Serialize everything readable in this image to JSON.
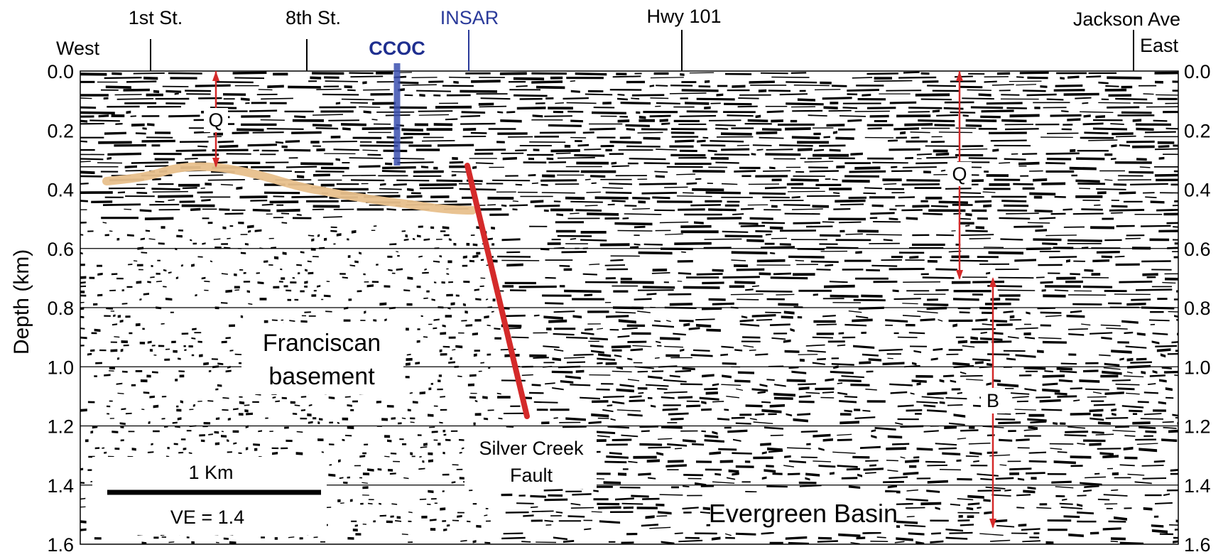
{
  "figure": {
    "axis": {
      "ylabel": "Depth (km)",
      "ylim": [
        0.0,
        1.6
      ],
      "ticks": [
        "0.0",
        "0.2",
        "0.4",
        "0.6",
        "0.8",
        "1.0",
        "1.2",
        "1.4",
        "1.6"
      ],
      "gridlines_at": [
        0.6,
        0.8,
        1.0,
        1.2,
        1.4
      ]
    },
    "street_labels": [
      {
        "id": "1st",
        "label": "1st St."
      },
      {
        "id": "8th",
        "label": "8th St."
      },
      {
        "id": "insar",
        "label": "INSAR"
      },
      {
        "id": "hwy101",
        "label": "Hwy 101"
      },
      {
        "id": "jackson",
        "label": "Jackson Ave"
      }
    ],
    "direction_labels": {
      "west": "West",
      "east": "East"
    },
    "ccoc_label": "CCOC",
    "unit_labels": {
      "q_left": "Q",
      "q_right": "Q",
      "b": "B",
      "franciscan_line1": "Franciscan",
      "franciscan_line2": "basement",
      "fault_line1": "Silver Creek",
      "fault_line2": "Fault",
      "basin": "Evergreen Basin"
    },
    "scale_bar": {
      "label": "1 Km",
      "ve": "VE = 1.4"
    },
    "colors": {
      "fault": "#d42a2a",
      "arrow": "#d42a2a",
      "horizon": "#e8c08c",
      "ccoc": "#3a4fb0",
      "insar": "#2a3a9a",
      "ccoc_text": "#1f2f8f",
      "seismic": "#000000"
    }
  }
}
